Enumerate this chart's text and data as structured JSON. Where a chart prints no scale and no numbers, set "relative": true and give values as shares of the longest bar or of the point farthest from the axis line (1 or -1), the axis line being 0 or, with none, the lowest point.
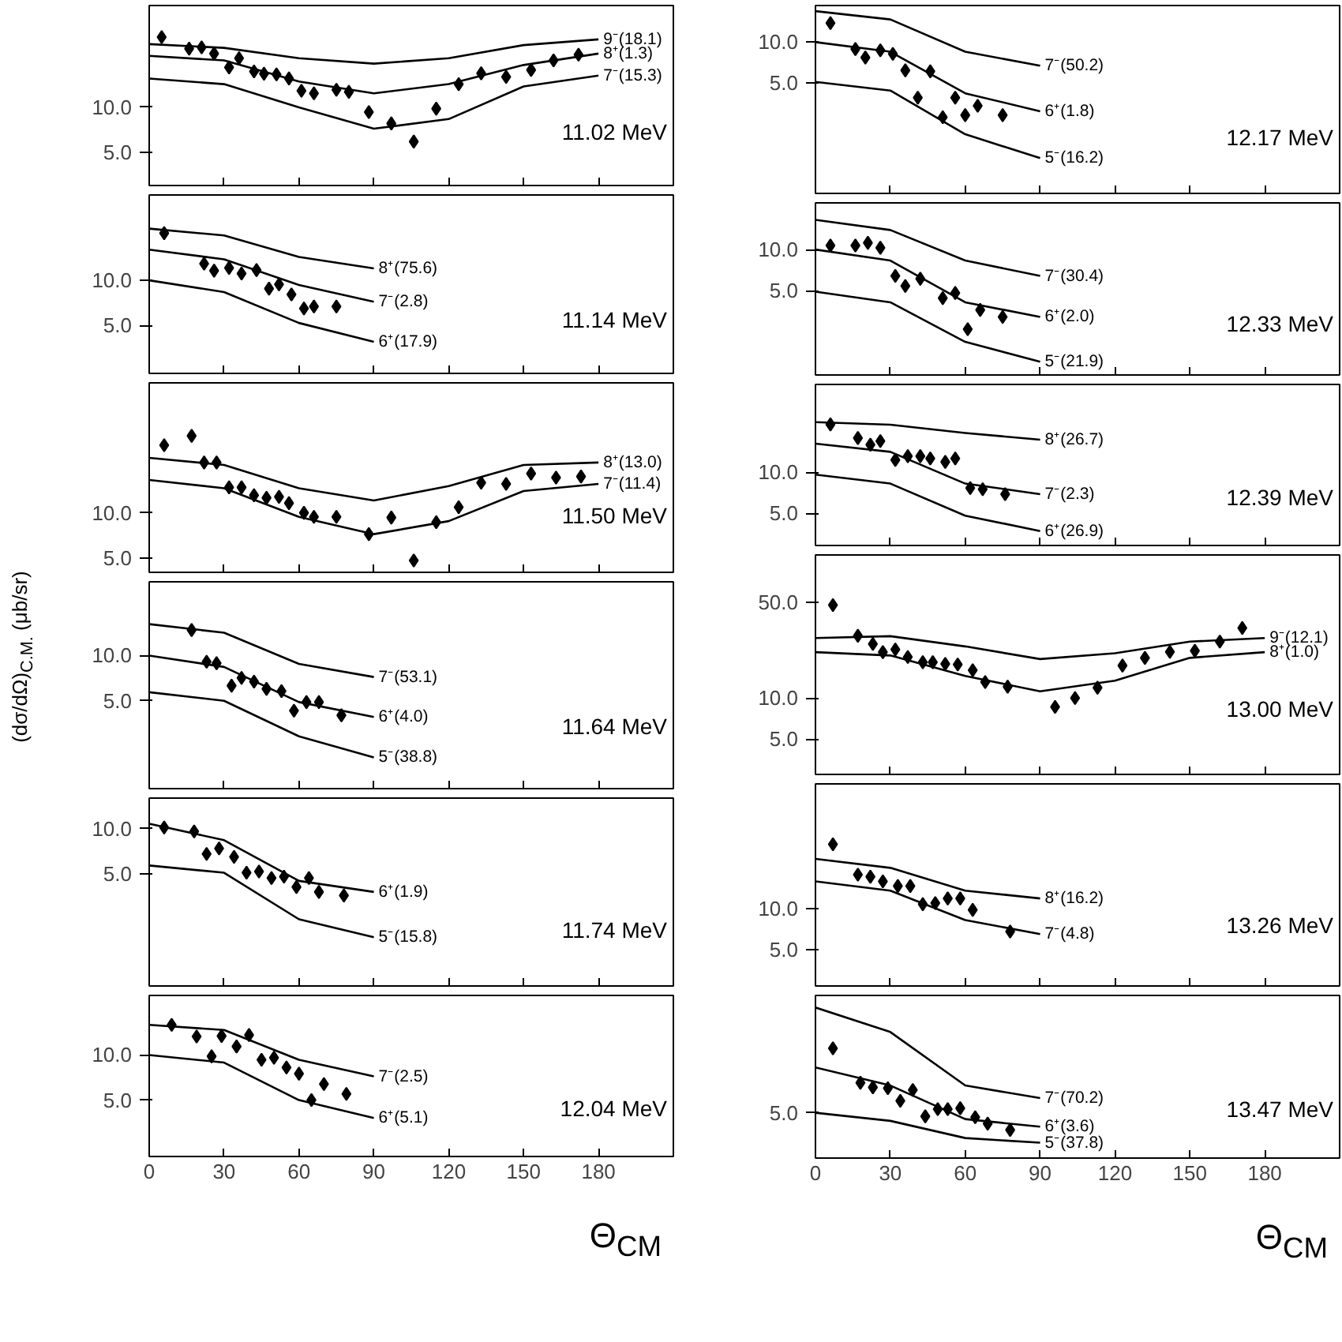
{
  "chart_data": [
    {
      "type": "scatter",
      "annotations": [
        "11.02 MeV"
      ],
      "xlim": [
        0,
        210
      ],
      "xticks": [
        0,
        30,
        60,
        90,
        120,
        150,
        180
      ],
      "ylim": [
        3,
        48
      ],
      "yticks": [
        {
          "value": 5,
          "label": "5.0"
        },
        {
          "value": 10,
          "label": "10.0"
        }
      ],
      "log": "y",
      "marker": "diamond",
      "tick_labels": "y",
      "series": [
        {
          "color": "#000000",
          "x": [
            5,
            16,
            21,
            26,
            32,
            36,
            42,
            46,
            51,
            56,
            61,
            66,
            75,
            80,
            88,
            97,
            106,
            115,
            124,
            133,
            143,
            153,
            162,
            172
          ],
          "values": [
            29.5,
            24.7,
            25.2,
            22.9,
            18.5,
            21.3,
            17.4,
            16.8,
            16.6,
            15.6,
            12.9,
            12.4,
            13.1,
            12.7,
            9.3,
            7.8,
            5.9,
            9.8,
            14.3,
            16.9,
            16.0,
            17.8,
            20.6,
            22.5
          ]
        },
        {
          "type": "line",
          "marker": "none",
          "name": "9⁻(18.1)",
          "color": "#000000",
          "x": [
            0,
            30,
            60,
            90,
            120,
            150,
            180
          ],
          "values": [
            26.5,
            25.0,
            21.3,
            19.6,
            21.3,
            26.1,
            28.5
          ]
        },
        {
          "type": "line",
          "marker": "none",
          "name": "8⁺(1.3)",
          "color": "#000000",
          "x": [
            0,
            30,
            60,
            90,
            120,
            150,
            180
          ],
          "values": [
            22.1,
            20.6,
            14.9,
            12.4,
            14.3,
            19.2,
            22.9
          ]
        },
        {
          "type": "line",
          "marker": "none",
          "name": "7⁻(15.3)",
          "color": "#000000",
          "x": [
            0,
            30,
            60,
            90,
            120,
            150,
            180
          ],
          "values": [
            15.6,
            14.3,
            10.0,
            7.2,
            8.35,
            13.8,
            16.3
          ]
        }
      ]
    },
    {
      "type": "scatter",
      "annotations": [
        "11.14 MeV"
      ],
      "xlim": [
        0,
        210
      ],
      "xticks": [
        0,
        30,
        60,
        90,
        120,
        150,
        180
      ],
      "ylim": [
        2.4,
        37
      ],
      "yticks": [
        {
          "value": 5,
          "label": "5.0"
        },
        {
          "value": 10,
          "label": "10.0"
        }
      ],
      "log": "y",
      "marker": "diamond",
      "tick_labels": "y",
      "series": [
        {
          "color": "#000000",
          "x": [
            6,
            22,
            26,
            32,
            37,
            43,
            48,
            52,
            57,
            62,
            66,
            75
          ],
          "values": [
            20.6,
            12.9,
            11.6,
            12.1,
            11.1,
            11.7,
            8.8,
            9.4,
            8.05,
            6.5,
            6.7,
            6.7
          ]
        },
        {
          "type": "line",
          "marker": "none",
          "name": "8⁺(75.6)",
          "color": "#000000",
          "x": [
            0,
            30,
            60,
            90
          ],
          "values": [
            22.1,
            19.9,
            14.3,
            12.0
          ]
        },
        {
          "type": "line",
          "marker": "none",
          "name": "7⁻(2.8)",
          "color": "#000000",
          "x": [
            0,
            30,
            60,
            90
          ],
          "values": [
            16.0,
            13.8,
            9.3,
            7.2
          ]
        },
        {
          "type": "line",
          "marker": "none",
          "name": "6⁺(17.9)",
          "color": "#000000",
          "x": [
            0,
            30,
            60,
            90
          ],
          "values": [
            10.0,
            8.35,
            5.2,
            3.9
          ]
        }
      ]
    },
    {
      "type": "scatter",
      "annotations": [
        "11.50 MeV"
      ],
      "ylabel": "(dσ/dΩ)$_{C.M.}$ (μb/sr)",
      "xlim": [
        0,
        210
      ],
      "xticks": [
        0,
        30,
        60,
        90,
        120,
        150,
        180
      ],
      "ylim": [
        4,
        74
      ],
      "yticks": [
        {
          "value": 5,
          "label": "5.0"
        },
        {
          "value": 10,
          "label": "10.0"
        }
      ],
      "log": "y",
      "marker": "diamond",
      "tick_labels": "y",
      "series": [
        {
          "color": "#000000",
          "x": [
            6,
            17,
            22,
            27,
            32,
            37,
            42,
            47,
            52,
            56,
            62,
            66,
            75,
            88,
            97,
            106,
            115,
            124,
            133,
            143,
            153,
            163,
            173
          ],
          "values": [
            28.3,
            32.7,
            21.7,
            21.7,
            14.8,
            14.8,
            13.1,
            12.6,
            12.8,
            11.6,
            10.0,
            9.4,
            9.4,
            7.2,
            9.3,
            4.8,
            8.65,
            10.9,
            15.9,
            15.6,
            18.3,
            17.2,
            17.5
          ]
        },
        {
          "type": "line",
          "marker": "none",
          "name": "8⁺(13.0)",
          "color": "#000000",
          "x": [
            0,
            30,
            60,
            90,
            120,
            150,
            180
          ],
          "values": [
            23.3,
            20.9,
            14.6,
            12.1,
            15.1,
            20.9,
            21.7
          ]
        },
        {
          "type": "line",
          "marker": "none",
          "name": "7⁻(11.4)",
          "color": "#000000",
          "x": [
            0,
            30,
            60,
            90,
            120,
            150,
            180
          ],
          "values": [
            16.6,
            14.6,
            9.4,
            7.2,
            8.8,
            14.0,
            15.6
          ]
        }
      ]
    },
    {
      "type": "scatter",
      "annotations": [
        "11.64 MeV"
      ],
      "xlim": [
        0,
        210
      ],
      "xticks": [
        0,
        30,
        60,
        90,
        120,
        150,
        180
      ],
      "ylim": [
        1.3,
        31
      ],
      "yticks": [
        {
          "value": 5,
          "label": "5.0"
        },
        {
          "value": 10,
          "label": "10.0"
        }
      ],
      "log": "y",
      "marker": "diamond",
      "tick_labels": "y",
      "series": [
        {
          "color": "#000000",
          "x": [
            17,
            23,
            27,
            33,
            37,
            42,
            47,
            53,
            58,
            63,
            68,
            77
          ],
          "values": [
            14.8,
            9.1,
            8.9,
            6.3,
            7.1,
            6.7,
            6.0,
            5.8,
            4.3,
            4.9,
            4.9,
            4.0
          ]
        },
        {
          "type": "line",
          "marker": "none",
          "name": "7⁻(53.1)",
          "color": "#000000",
          "x": [
            0,
            30,
            60,
            90
          ],
          "values": [
            16.2,
            14.2,
            8.8,
            7.2
          ]
        },
        {
          "type": "line",
          "marker": "none",
          "name": "6⁺(4.0)",
          "color": "#000000",
          "x": [
            0,
            30,
            60,
            90
          ],
          "values": [
            10.0,
            8.4,
            4.9,
            3.9
          ]
        },
        {
          "type": "line",
          "marker": "none",
          "name": "5⁻(38.8)",
          "color": "#000000",
          "x": [
            0,
            30,
            60,
            90
          ],
          "values": [
            5.7,
            5.0,
            2.9,
            2.1
          ]
        }
      ]
    },
    {
      "type": "scatter",
      "annotations": [
        "11.74 MeV"
      ],
      "xlim": [
        0,
        210
      ],
      "xticks": [
        0,
        30,
        60,
        90,
        120,
        150,
        180
      ],
      "ylim": [
        0.9,
        16
      ],
      "yticks": [
        {
          "value": 5,
          "label": "5.0"
        },
        {
          "value": 10,
          "label": "10.0"
        }
      ],
      "log": "y",
      "marker": "diamond",
      "tick_labels": "y",
      "series": [
        {
          "color": "#000000",
          "x": [
            6,
            18,
            23,
            28,
            34,
            39,
            44,
            49,
            54,
            59,
            64,
            68,
            78
          ],
          "values": [
            10.2,
            9.6,
            6.8,
            7.4,
            6.5,
            5.1,
            5.2,
            4.7,
            4.8,
            4.1,
            4.7,
            3.8,
            3.6
          ]
        },
        {
          "type": "line",
          "marker": "none",
          "name": "6⁺(1.9)",
          "color": "#000000",
          "x": [
            0,
            30,
            60,
            90
          ],
          "values": [
            10.8,
            8.4,
            4.5,
            3.8
          ]
        },
        {
          "type": "line",
          "marker": "none",
          "name": "5⁻(15.8)",
          "color": "#000000",
          "x": [
            0,
            30,
            60,
            90
          ],
          "values": [
            5.7,
            5.1,
            2.5,
            1.9
          ]
        }
      ]
    },
    {
      "type": "scatter",
      "annotations": [
        "12.04 MeV"
      ],
      "xlabel": "Θ$_{CM}$",
      "xlim": [
        0,
        210
      ],
      "xticks": [
        0,
        30,
        60,
        90,
        120,
        150,
        180
      ],
      "ylim": [
        2.1,
        25
      ],
      "yticks": [
        {
          "value": 5,
          "label": "5.0"
        },
        {
          "value": 10,
          "label": "10.0"
        }
      ],
      "log": "y",
      "marker": "diamond",
      "series": [
        {
          "color": "#000000",
          "x": [
            9,
            19,
            25,
            29,
            35,
            40,
            45,
            50,
            55,
            60,
            65,
            70,
            79
          ],
          "values": [
            15.9,
            13.3,
            9.8,
            13.4,
            11.4,
            13.6,
            9.3,
            9.6,
            8.25,
            7.5,
            5.0,
            6.4,
            5.5
          ]
        },
        {
          "type": "line",
          "marker": "none",
          "name": "7⁻(2.5)",
          "color": "#000000",
          "x": [
            0,
            30,
            60,
            90
          ],
          "values": [
            15.9,
            14.7,
            9.3,
            7.2
          ]
        },
        {
          "type": "line",
          "marker": "none",
          "name": "6⁺(5.1)",
          "color": "#000000",
          "x": [
            0,
            30,
            60,
            90
          ],
          "values": [
            10.0,
            8.9,
            5.0,
            3.8
          ]
        }
      ]
    },
    {
      "type": "scatter",
      "annotations": [
        "12.17 MeV"
      ],
      "xlim": [
        0,
        210
      ],
      "xticks": [
        0,
        30,
        60,
        90,
        120,
        150,
        180
      ],
      "ylim": [
        0.77,
        18.6
      ],
      "yticks": [
        {
          "value": 5,
          "label": "5.0"
        },
        {
          "value": 10,
          "label": "10.0"
        }
      ],
      "log": "y",
      "marker": "diamond",
      "tick_labels": "y",
      "series": [
        {
          "color": "#000000",
          "x": [
            6,
            16,
            20,
            26,
            31,
            36,
            41,
            46,
            51,
            56,
            60,
            65,
            75
          ],
          "values": [
            13.8,
            8.9,
            7.7,
            8.7,
            8.2,
            6.2,
            3.9,
            6.1,
            2.8,
            3.9,
            2.9,
            3.4,
            2.9
          ]
        },
        {
          "type": "line",
          "marker": "none",
          "name": "7⁻(50.2)",
          "color": "#000000",
          "x": [
            0,
            30,
            60,
            90
          ],
          "values": [
            16.9,
            14.7,
            8.5,
            6.7
          ]
        },
        {
          "type": "line",
          "marker": "none",
          "name": "6⁺(1.8)",
          "color": "#000000",
          "x": [
            0,
            30,
            60,
            90
          ],
          "values": [
            10.0,
            8.5,
            4.2,
            3.1
          ]
        },
        {
          "type": "line",
          "marker": "none",
          "name": "5⁻(16.2)",
          "color": "#000000",
          "x": [
            0,
            30,
            60,
            90
          ],
          "values": [
            5.1,
            4.4,
            2.1,
            1.4
          ]
        }
      ]
    },
    {
      "type": "scatter",
      "annotations": [
        "12.33 MeV"
      ],
      "xlim": [
        0,
        210
      ],
      "xticks": [
        0,
        30,
        60,
        90,
        120,
        150,
        180
      ],
      "ylim": [
        1.2,
        22
      ],
      "yticks": [
        {
          "value": 5,
          "label": "5.0"
        },
        {
          "value": 10,
          "label": "10.0"
        }
      ],
      "log": "y",
      "marker": "diamond",
      "tick_labels": "y",
      "series": [
        {
          "color": "#000000",
          "x": [
            6,
            16,
            21,
            26,
            32,
            36,
            42,
            51,
            56,
            61,
            66,
            75
          ],
          "values": [
            10.7,
            10.7,
            11.2,
            10.3,
            6.4,
            5.4,
            6.1,
            4.4,
            4.8,
            2.6,
            3.6,
            3.2
          ]
        },
        {
          "type": "line",
          "marker": "none",
          "name": "7⁻(30.4)",
          "color": "#000000",
          "x": [
            0,
            30,
            60,
            90
          ],
          "values": [
            16.5,
            13.9,
            8.3,
            6.4
          ]
        },
        {
          "type": "line",
          "marker": "none",
          "name": "6⁺(2.0)",
          "color": "#000000",
          "x": [
            0,
            30,
            60,
            90
          ],
          "values": [
            10.0,
            8.3,
            4.1,
            3.2
          ]
        },
        {
          "type": "line",
          "marker": "none",
          "name": "5⁻(21.9)",
          "color": "#000000",
          "x": [
            0,
            30,
            60,
            90
          ],
          "values": [
            4.9,
            4.1,
            2.1,
            1.5
          ]
        }
      ]
    },
    {
      "type": "scatter",
      "annotations": [
        "12.39 MeV"
      ],
      "xlim": [
        0,
        210
      ],
      "xticks": [
        0,
        30,
        60,
        90,
        120,
        150,
        180
      ],
      "ylim": [
        2.9,
        44
      ],
      "yticks": [
        {
          "value": 5,
          "label": "5.0"
        },
        {
          "value": 10,
          "label": "10.0"
        }
      ],
      "log": "y",
      "marker": "diamond",
      "tick_labels": "y",
      "series": [
        {
          "color": "#000000",
          "x": [
            6,
            17,
            22,
            26,
            32,
            37,
            42,
            46,
            52,
            56,
            62,
            67,
            76
          ],
          "values": [
            22.4,
            17.8,
            15.9,
            16.9,
            12.3,
            13.1,
            13.1,
            12.6,
            11.9,
            12.6,
            7.65,
            7.5,
            6.9
          ]
        },
        {
          "type": "line",
          "marker": "none",
          "name": "8⁺(26.7)",
          "color": "#000000",
          "x": [
            0,
            30,
            60,
            90
          ],
          "values": [
            23.3,
            22.3,
            19.4,
            17.3
          ]
        },
        {
          "type": "line",
          "marker": "none",
          "name": "7⁻(2.3)",
          "color": "#000000",
          "x": [
            0,
            30,
            60,
            90
          ],
          "values": [
            16.2,
            14.1,
            8.25,
            6.9
          ]
        },
        {
          "type": "line",
          "marker": "none",
          "name": "6⁺(26.9)",
          "color": "#000000",
          "x": [
            0,
            30,
            60,
            90
          ],
          "values": [
            9.6,
            8.25,
            4.8,
            3.7
          ]
        }
      ]
    },
    {
      "type": "scatter",
      "annotations": [
        "13.00 MeV"
      ],
      "xlim": [
        0,
        210
      ],
      "xticks": [
        0,
        30,
        60,
        90,
        120,
        150,
        180
      ],
      "ylim": [
        2.75,
        112
      ],
      "yticks": [
        {
          "value": 5,
          "label": "5.0"
        },
        {
          "value": 10,
          "label": "10.0"
        },
        {
          "value": 50,
          "label": "50.0"
        }
      ],
      "log": "y",
      "marker": "diamond",
      "tick_labels": "y",
      "series": [
        {
          "color": "#000000",
          "x": [
            7,
            17,
            23,
            27,
            32,
            37,
            43,
            47,
            52,
            57,
            63,
            68,
            77,
            96,
            104,
            113,
            123,
            132,
            142,
            152,
            162,
            171
          ],
          "values": [
            48,
            28.6,
            24.9,
            21.7,
            22.7,
            20.0,
            18.3,
            18.3,
            17.8,
            17.6,
            16.0,
            13.1,
            12.1,
            8.6,
            10.0,
            11.9,
            17.3,
            19.7,
            21.8,
            22.2,
            25.9,
            32.6
          ]
        },
        {
          "type": "line",
          "marker": "none",
          "name": "9⁻(12.1)",
          "color": "#000000",
          "x": [
            0,
            30,
            60,
            90,
            120,
            150,
            180
          ],
          "values": [
            27.5,
            28.4,
            23.9,
            19.3,
            21.3,
            25.9,
            27.5
          ]
        },
        {
          "type": "line",
          "marker": "none",
          "name": "8⁺(1.0)",
          "color": "#000000",
          "x": [
            0,
            30,
            60,
            90,
            120,
            150,
            180
          ],
          "values": [
            21.7,
            20.5,
            14.5,
            11.2,
            13.4,
            19.7,
            21.7
          ]
        }
      ]
    },
    {
      "type": "scatter",
      "annotations": [
        "13.26 MeV"
      ],
      "xlim": [
        0,
        210
      ],
      "xticks": [
        0,
        30,
        60,
        90,
        120,
        150,
        180
      ],
      "ylim": [
        2.7,
        83
      ],
      "yticks": [
        {
          "value": 5,
          "label": "5.0"
        },
        {
          "value": 10,
          "label": "10.0"
        }
      ],
      "log": "y",
      "marker": "diamond",
      "tick_labels": "y",
      "series": [
        {
          "color": "#000000",
          "x": [
            7,
            17,
            22,
            27,
            33,
            38,
            43,
            48,
            53,
            58,
            63,
            78
          ],
          "values": [
            29.8,
            17.8,
            17.2,
            15.9,
            14.7,
            14.7,
            10.8,
            11.0,
            11.9,
            11.9,
            9.8,
            6.8
          ]
        },
        {
          "type": "line",
          "marker": "none",
          "name": "8⁺(16.2)",
          "color": "#000000",
          "x": [
            0,
            30,
            60,
            90
          ],
          "values": [
            23.3,
            20.0,
            13.6,
            11.9
          ]
        },
        {
          "type": "line",
          "marker": "none",
          "name": "7⁻(4.8)",
          "color": "#000000",
          "x": [
            0,
            30,
            60,
            90
          ],
          "values": [
            15.9,
            13.6,
            8.25,
            6.5
          ]
        }
      ]
    },
    {
      "type": "scatter",
      "relative": true,
      "annotations": [
        "13.47 MeV",
        "5.0"
      ],
      "xlabel": "Θ$_{CM}$",
      "xlim": [
        0,
        210
      ],
      "xticks": [
        0,
        30,
        60,
        90,
        120,
        150,
        180
      ],
      "marker": "diamond",
      "series": [
        {
          "color": "#000000",
          "x": [
            7,
            18,
            23,
            29,
            34,
            39,
            44,
            49,
            53,
            58,
            64,
            69,
            78
          ],
          "values": [
            0.729,
            0.5,
            0.47,
            0.464,
            0.38,
            0.452,
            0.277,
            0.325,
            0.325,
            0.331,
            0.271,
            0.229,
            0.187
          ]
        },
        {
          "type": "line",
          "marker": "none",
          "name": "7⁻(70.2)",
          "color": "#000000",
          "x": [
            0,
            30,
            60,
            90
          ],
          "values": [
            1,
            0.837,
            0.482,
            0.398
          ]
        },
        {
          "type": "line",
          "marker": "none",
          "name": "6⁺(3.6)",
          "color": "#000000",
          "x": [
            0,
            30,
            60,
            90
          ],
          "values": [
            0.602,
            0.482,
            0.259,
            0.208
          ]
        },
        {
          "type": "line",
          "marker": "none",
          "name": "5⁻(37.8)",
          "color": "#000000",
          "x": [
            0,
            30,
            60,
            90
          ],
          "values": [
            0.301,
            0.247,
            0.133,
            0.102
          ]
        }
      ]
    }
  ]
}
